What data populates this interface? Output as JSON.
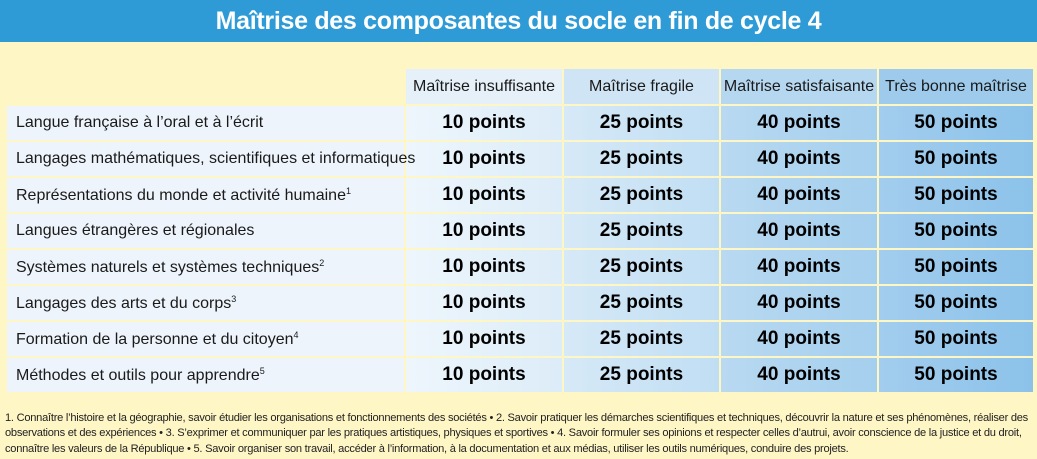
{
  "title": "Maîtrise des composantes du socle en fin de cycle 4",
  "columns": [
    "Maîtrise insuffisante",
    "Maîtrise fragile",
    "Maîtrise satisfaisante",
    "Très bonne maîtrise"
  ],
  "rows": [
    {
      "label": "Langue française à l’oral et à l’écrit",
      "sup": "",
      "points": [
        "10 points",
        "25 points",
        "40 points",
        "50 points"
      ]
    },
    {
      "label": "Langages mathématiques, scientifiques et informatiques",
      "sup": "",
      "points": [
        "10 points",
        "25 points",
        "40 points",
        "50 points"
      ]
    },
    {
      "label": "Représentations du monde et activité humaine",
      "sup": "1",
      "points": [
        "10 points",
        "25 points",
        "40 points",
        "50 points"
      ]
    },
    {
      "label": "Langues étrangères et régionales",
      "sup": "",
      "points": [
        "10 points",
        "25 points",
        "40 points",
        "50 points"
      ]
    },
    {
      "label": "Systèmes naturels et systèmes techniques",
      "sup": "2",
      "points": [
        "10 points",
        "25 points",
        "40 points",
        "50 points"
      ]
    },
    {
      "label": "Langages des arts et du corps",
      "sup": "3",
      "points": [
        "10 points",
        "25 points",
        "40 points",
        "50 points"
      ]
    },
    {
      "label": "Formation de la personne et du citoyen",
      "sup": "4",
      "points": [
        "10 points",
        "25 points",
        "40 points",
        "50 points"
      ]
    },
    {
      "label": "Méthodes et outils pour apprendre",
      "sup": "5",
      "points": [
        "10 points",
        "25 points",
        "40 points",
        "50 points"
      ]
    }
  ],
  "footnotes": "1. Connaître l’histoire et la géographie, savoir étudier les organisations et fonctionnements des sociétés • 2. Savoir pratiquer les démarches scientifiques et techniques, découvrir la nature et ses phénomènes, réaliser des observations et des expériences • 3. S’exprimer et communiquer par les pratiques artistiques, physiques et sportives • 4. Savoir formuler ses opinions et respecter celles d’autrui, avoir conscience de la justice et du droit, connaître les valeurs de la République • 5. Savoir organiser son travail, accéder à l’information, à la documentation et aux médias, utiliser les outils numériques, conduire des projets.",
  "colors": {
    "title_bar": "#2e9bd6",
    "background": "#fff6c6"
  }
}
